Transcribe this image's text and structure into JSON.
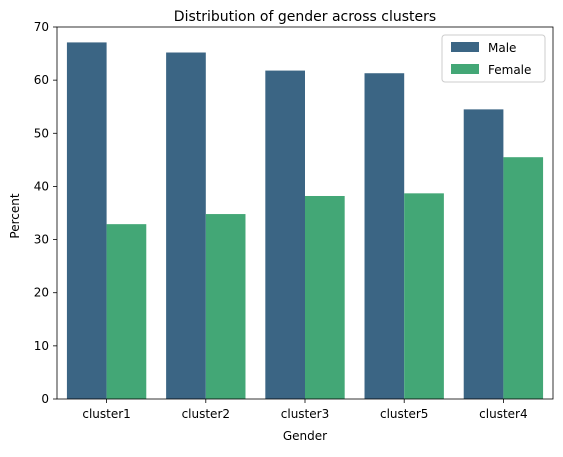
{
  "chart_data": {
    "type": "bar",
    "title": "Distribution of gender across clusters",
    "xlabel": "Gender",
    "ylabel": "Percent",
    "categories": [
      "cluster1",
      "cluster2",
      "cluster3",
      "cluster5",
      "cluster4"
    ],
    "series": [
      {
        "name": "Male",
        "color": "#3b6584",
        "values": [
          67.1,
          65.2,
          61.8,
          61.3,
          54.5
        ]
      },
      {
        "name": "Female",
        "color": "#43a776",
        "values": [
          32.9,
          34.8,
          38.2,
          38.7,
          45.5
        ]
      }
    ],
    "ylim": [
      0,
      70
    ],
    "yticks": [
      0,
      10,
      20,
      30,
      40,
      50,
      60,
      70
    ],
    "legend_position": "top-right",
    "grid": false
  }
}
